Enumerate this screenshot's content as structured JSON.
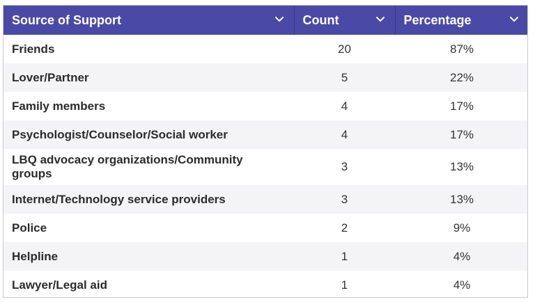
{
  "header": {
    "columns": [
      {
        "label": "Source of Support",
        "icon": "chevron-down-icon"
      },
      {
        "label": "Count",
        "icon": "chevron-down-icon"
      },
      {
        "label": "Percentage",
        "icon": "chevron-down-icon"
      }
    ]
  },
  "rows": [
    {
      "source": "Friends",
      "count": "20",
      "percentage": "87%"
    },
    {
      "source": "Lover/Partner",
      "count": "5",
      "percentage": "22%"
    },
    {
      "source": "Family members",
      "count": "4",
      "percentage": "17%"
    },
    {
      "source": "Psychologist/Counselor/Social worker",
      "count": "4",
      "percentage": "17%"
    },
    {
      "source": "LBQ advocacy organizations/Community groups",
      "count": "3",
      "percentage": "13%"
    },
    {
      "source": "Internet/Technology service providers",
      "count": "3",
      "percentage": "13%"
    },
    {
      "source": "Police",
      "count": "2",
      "percentage": "9%"
    },
    {
      "source": "Helpline",
      "count": "1",
      "percentage": "4%"
    },
    {
      "source": "Lawyer/Legal aid",
      "count": "1",
      "percentage": "4%"
    }
  ],
  "colors": {
    "header_bg": "#4a4aa6",
    "header_text": "#ffffff",
    "row_alt": "#f4f4f7"
  }
}
